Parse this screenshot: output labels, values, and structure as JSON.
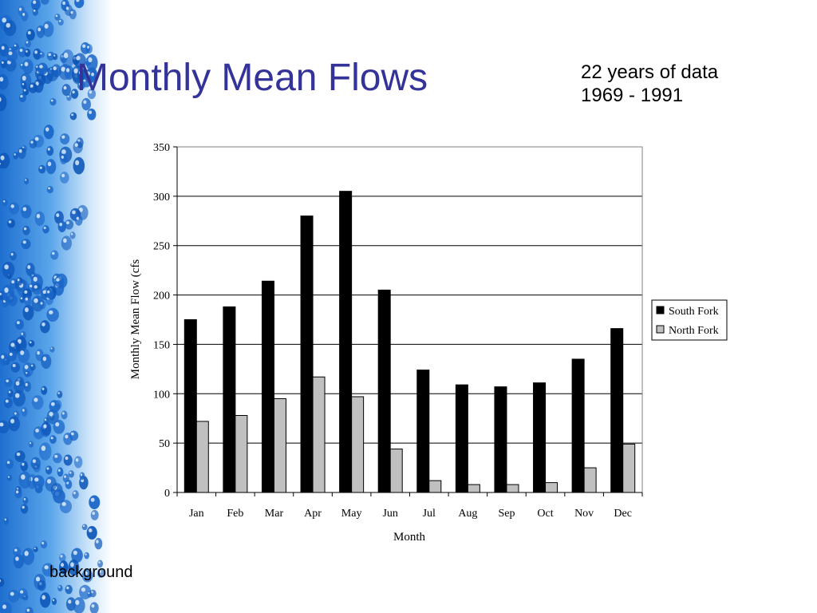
{
  "slide": {
    "title": "Monthly Mean Flows",
    "note_lines": [
      "22 years of data",
      "1969 - 1991"
    ],
    "footer": "background"
  },
  "colors": {
    "title": "#333399",
    "south_fork": "#000000",
    "north_fork": "#c0c0c0",
    "water_light": "#9ecbf0",
    "water_dark": "#2f7fd8"
  },
  "chart_data": {
    "type": "bar",
    "title": "",
    "xlabel": "Month",
    "ylabel": "Monthly Mean Flow (cfs",
    "ylim": [
      0,
      350
    ],
    "yticks": [
      0,
      50,
      100,
      150,
      200,
      250,
      300,
      350
    ],
    "grid": true,
    "legend_position": "right",
    "categories": [
      "Jan",
      "Feb",
      "Mar",
      "Apr",
      "May",
      "Jun",
      "Jul",
      "Aug",
      "Sep",
      "Oct",
      "Nov",
      "Dec"
    ],
    "series": [
      {
        "name": "South Fork",
        "color": "#000000",
        "values": [
          175,
          188,
          214,
          280,
          305,
          205,
          124,
          109,
          107,
          111,
          135,
          166
        ]
      },
      {
        "name": "North Fork",
        "color": "#c0c0c0",
        "values": [
          72,
          78,
          95,
          117,
          97,
          44,
          12,
          8,
          8,
          10,
          25,
          49
        ]
      }
    ]
  }
}
